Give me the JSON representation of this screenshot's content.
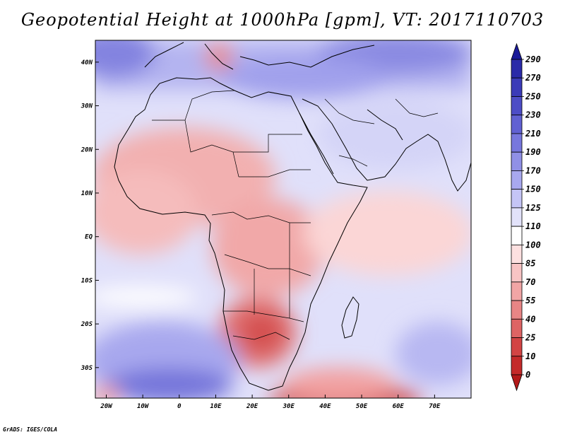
{
  "title": "Geopotential Height at 1000hPa [gpm], VT: 2017110703",
  "credit": "GrADS: IGES/COLA",
  "map": {
    "lon_range": [
      -23,
      80
    ],
    "lat_range": [
      -37,
      45
    ],
    "lon_ticks": [
      {
        "value": -20,
        "label": "20W"
      },
      {
        "value": -10,
        "label": "10W"
      },
      {
        "value": 0,
        "label": "0"
      },
      {
        "value": 10,
        "label": "10E"
      },
      {
        "value": 20,
        "label": "20E"
      },
      {
        "value": 30,
        "label": "30E"
      },
      {
        "value": 40,
        "label": "40E"
      },
      {
        "value": 50,
        "label": "50E"
      },
      {
        "value": 60,
        "label": "60E"
      },
      {
        "value": 70,
        "label": "70E"
      }
    ],
    "lat_ticks": [
      {
        "value": 40,
        "label": "40N"
      },
      {
        "value": 30,
        "label": "30N"
      },
      {
        "value": 20,
        "label": "20N"
      },
      {
        "value": 10,
        "label": "10N"
      },
      {
        "value": 0,
        "label": "EQ"
      },
      {
        "value": -10,
        "label": "10S"
      },
      {
        "value": -20,
        "label": "20S"
      },
      {
        "value": -30,
        "label": "30S"
      }
    ]
  },
  "colorbar": {
    "levels": [
      "290",
      "270",
      "250",
      "230",
      "210",
      "190",
      "170",
      "150",
      "125",
      "110",
      "100",
      "85",
      "70",
      "55",
      "40",
      "25",
      "10",
      "0"
    ],
    "colors": [
      "#1a1a99",
      "#2a2aa8",
      "#3b3bb8",
      "#4d4dc6",
      "#6161d2",
      "#7777dd",
      "#9090e6",
      "#a8a8ef",
      "#c5c5f6",
      "#e2e2fa",
      "#ffffff",
      "#fde0e0",
      "#f8c4c4",
      "#f1a5a5",
      "#e88585",
      "#de6464",
      "#d24444",
      "#c42a2a",
      "#b31a1a"
    ]
  }
}
